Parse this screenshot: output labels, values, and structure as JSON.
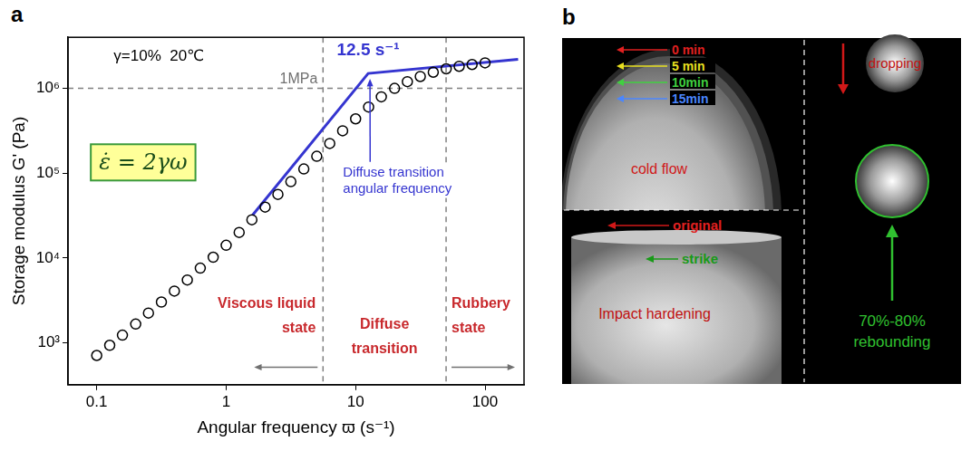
{
  "chart_data": {
    "type": "scatter",
    "panel_label": "a",
    "x_label": "Angular frequency ϖ (s⁻¹)",
    "y_label": "Storage modulus G' (Pa)",
    "log": true,
    "grid": false,
    "xlim": [
      0.06,
      200
    ],
    "ylim": [
      320,
      4000000
    ],
    "xticks": [
      0.1,
      1,
      10,
      100
    ],
    "yticks": [
      {
        "value": 1000,
        "label": "10³"
      },
      {
        "value": 10000,
        "label": "10⁴"
      },
      {
        "value": 100000,
        "label": "10⁵"
      },
      {
        "value": 1000000,
        "label": "10⁶"
      }
    ],
    "marker": "open_circle",
    "color": "#000000",
    "x": [
      0.1,
      0.126,
      0.158,
      0.2,
      0.251,
      0.316,
      0.398,
      0.501,
      0.631,
      0.794,
      1,
      1.26,
      1.58,
      2,
      2.51,
      3.16,
      3.98,
      5.01,
      6.31,
      7.94,
      10,
      12.6,
      15.8,
      20,
      25.1,
      31.6,
      39.8,
      50.1,
      63.1,
      79.4,
      100
    ],
    "values": [
      708,
      933,
      1230,
      1660,
      2240,
      3020,
      4070,
      5500,
      7590,
      10200,
      14100,
      20000,
      28200,
      39800,
      56200,
      79400,
      112000,
      158000,
      224000,
      316000,
      437000,
      603000,
      794000,
      1000000,
      1200000,
      1380000,
      1550000,
      1700000,
      1820000,
      1910000,
      2000000
    ],
    "fit": {
      "x": [
        1.6,
        12.5,
        180
      ],
      "values": [
        32000,
        1500000,
        2200000
      ],
      "color": "#3535d0",
      "line_style": "solid"
    },
    "reference_lines": [
      {
        "axis": "y",
        "value": 1000000,
        "label": "1MPa"
      },
      {
        "axis": "x",
        "value": 5.6
      },
      {
        "axis": "x",
        "value": 50
      }
    ],
    "annotations": {
      "conditions": "γ=10%  20℃",
      "formula": "ε̇ = 2γω",
      "transition_rate": "12.5 s⁻¹",
      "transition_note": "Diffuse transition angular frequency",
      "regions": [
        "Viscous liquid state",
        "Diffuse transition",
        "Rubbery state"
      ]
    }
  },
  "photo_panel": {
    "panel_label": "b",
    "cold_flow": {
      "times": [
        "0 min",
        "5 min",
        "10min",
        "15min"
      ],
      "label": "cold flow"
    },
    "impact": {
      "marks": [
        "original",
        "strike"
      ],
      "label": "Impact hardening"
    },
    "rebound": {
      "dropping": "dropping",
      "label": [
        "70%-80%",
        "rebounding"
      ]
    }
  }
}
